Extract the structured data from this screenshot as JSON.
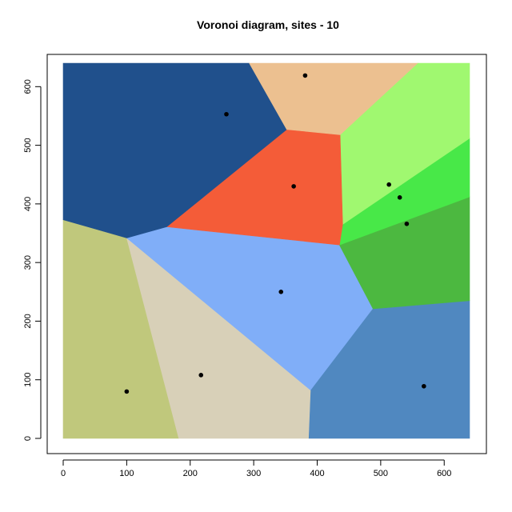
{
  "chart_data": {
    "type": "voronoi",
    "title": "Voronoi diagram, sites - 10",
    "xlabel": "",
    "ylabel": "",
    "xlim": [
      0,
      640
    ],
    "ylim": [
      0,
      640
    ],
    "x_ticks": [
      0,
      100,
      200,
      300,
      400,
      500,
      600
    ],
    "y_ticks": [
      0,
      100,
      200,
      300,
      400,
      500,
      600
    ],
    "grid": false,
    "sites": [
      {
        "x": 100,
        "y": 80
      },
      {
        "x": 217,
        "y": 108
      },
      {
        "x": 343,
        "y": 250
      },
      {
        "x": 568,
        "y": 89
      },
      {
        "x": 541,
        "y": 366
      },
      {
        "x": 530,
        "y": 411
      },
      {
        "x": 513,
        "y": 433
      },
      {
        "x": 363,
        "y": 430
      },
      {
        "x": 257,
        "y": 553
      },
      {
        "x": 381,
        "y": 619
      }
    ],
    "cells": [
      {
        "color": "#c0c87c",
        "polygon": [
          [
            0,
            0
          ],
          [
            182,
            0
          ],
          [
            100,
            342
          ],
          [
            0,
            373
          ]
        ]
      },
      {
        "color": "#d8d0b8",
        "polygon": [
          [
            182,
            0
          ],
          [
            387,
            0
          ],
          [
            390,
            82
          ],
          [
            100,
            342
          ]
        ]
      },
      {
        "color": "#80aef8",
        "polygon": [
          [
            100,
            342
          ],
          [
            390,
            82
          ],
          [
            488,
            221
          ],
          [
            435,
            330
          ],
          [
            163,
            361
          ]
        ]
      },
      {
        "color": "#5088c0",
        "polygon": [
          [
            387,
            0
          ],
          [
            640,
            0
          ],
          [
            640,
            235
          ],
          [
            488,
            221
          ],
          [
            390,
            82
          ]
        ]
      },
      {
        "color": "#4cb840",
        "polygon": [
          [
            488,
            221
          ],
          [
            640,
            235
          ],
          [
            640,
            412
          ],
          [
            435,
            330
          ]
        ]
      },
      {
        "color": "#48e848",
        "polygon": [
          [
            435,
            330
          ],
          [
            640,
            412
          ],
          [
            640,
            512
          ],
          [
            440,
            365
          ]
        ]
      },
      {
        "color": "#a0f870",
        "polygon": [
          [
            440,
            365
          ],
          [
            640,
            512
          ],
          [
            640,
            640
          ],
          [
            558,
            640
          ],
          [
            436,
            518
          ]
        ]
      },
      {
        "color": "#f45c38",
        "polygon": [
          [
            163,
            361
          ],
          [
            435,
            330
          ],
          [
            440,
            365
          ],
          [
            436,
            518
          ],
          [
            352,
            527
          ]
        ]
      },
      {
        "color": "#20508c",
        "polygon": [
          [
            0,
            373
          ],
          [
            100,
            342
          ],
          [
            163,
            361
          ],
          [
            352,
            527
          ],
          [
            293,
            640
          ],
          [
            0,
            640
          ]
        ]
      },
      {
        "color": "#ecc090",
        "polygon": [
          [
            293,
            640
          ],
          [
            352,
            527
          ],
          [
            436,
            518
          ],
          [
            558,
            640
          ]
        ]
      }
    ]
  }
}
